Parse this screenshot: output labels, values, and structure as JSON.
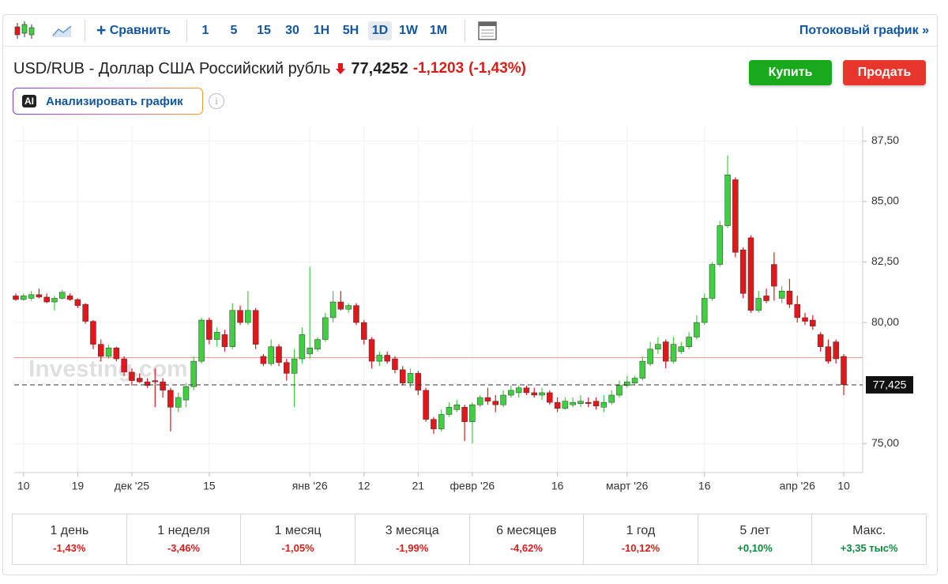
{
  "toolbar": {
    "compare": "Сравнить",
    "timeframes": [
      "1",
      "5",
      "15",
      "30",
      "1H",
      "5H",
      "1D",
      "1W",
      "1M"
    ],
    "selected": "1D",
    "stream_link": "Потоковый график »"
  },
  "header": {
    "title": "USD/RUB - Доллар США Российский рубль",
    "price": "77,4252",
    "change": "-1,1203",
    "change_pct": "(-1,43%)",
    "buy": "Купить",
    "sell": "Продать",
    "ai_badge": "AI",
    "analyze": "Анализировать график"
  },
  "chart_data": {
    "type": "candlestick",
    "watermark": "Investing.com",
    "categories": [
      null,
      "10",
      null,
      null,
      null,
      null,
      null,
      null,
      "19",
      null,
      null,
      null,
      null,
      null,
      null,
      "дек '25",
      null,
      null,
      null,
      null,
      null,
      null,
      null,
      null,
      null,
      "15",
      null,
      null,
      null,
      null,
      null,
      null,
      null,
      null,
      null,
      null,
      null,
      null,
      "янв '26",
      null,
      null,
      null,
      null,
      null,
      null,
      "12",
      null,
      null,
      null,
      null,
      null,
      null,
      "21",
      null,
      null,
      null,
      null,
      null,
      null,
      "февр '26",
      null,
      null,
      null,
      null,
      null,
      null,
      null,
      null,
      null,
      null,
      "16",
      null,
      null,
      null,
      null,
      null,
      null,
      null,
      null,
      "март '26",
      null,
      null,
      null,
      null,
      null,
      null,
      null,
      null,
      null,
      "16",
      null,
      null,
      null,
      null,
      null,
      null,
      null,
      null,
      null,
      null,
      null,
      "апр '26",
      null,
      null,
      null,
      null,
      null,
      "10"
    ],
    "open": [
      81.1,
      80.95,
      81.0,
      81.15,
      81.05,
      80.85,
      81.0,
      81.1,
      80.95,
      80.75,
      80.05,
      79.1,
      78.6,
      78.95,
      78.5,
      77.95,
      77.7,
      77.55,
      77.6,
      77.55,
      77.2,
      76.5,
      76.8,
      77.35,
      78.4,
      80.1,
      79.3,
      79.5,
      79.0,
      80.5,
      80.0,
      80.5,
      78.6,
      78.3,
      79.0,
      78.35,
      77.9,
      78.5,
      78.7,
      78.9,
      79.3,
      80.2,
      80.85,
      80.55,
      80.7,
      80.0,
      79.3,
      78.4,
      78.65,
      78.5,
      78.05,
      77.5,
      77.9,
      77.2,
      76.0,
      75.6,
      76.2,
      76.4,
      76.5,
      75.9,
      76.6,
      76.9,
      76.75,
      76.6,
      77.0,
      77.1,
      77.3,
      77.1,
      77.0,
      77.1,
      76.7,
      76.45,
      76.6,
      76.65,
      76.7,
      76.75,
      76.5,
      76.7,
      77.0,
      77.4,
      77.5,
      77.7,
      78.3,
      78.9,
      79.2,
      78.4,
      78.8,
      79.0,
      79.4,
      80.0,
      81.0,
      82.4,
      84.0,
      85.9,
      83.0,
      83.5,
      80.5,
      81.1,
      82.4,
      81.0,
      81.3,
      80.75,
      80.2,
      80.1,
      79.5,
      79.0,
      79.2,
      78.6
    ],
    "high": [
      81.2,
      81.2,
      81.3,
      81.4,
      81.2,
      81.1,
      81.35,
      81.2,
      81.0,
      80.8,
      80.1,
      79.3,
      79.1,
      79.0,
      78.6,
      78.1,
      77.9,
      77.7,
      78.1,
      77.7,
      77.3,
      77.1,
      77.5,
      78.6,
      80.2,
      80.2,
      79.8,
      79.7,
      80.8,
      80.7,
      81.3,
      80.6,
      78.7,
      79.3,
      79.1,
      78.5,
      78.9,
      79.8,
      82.3,
      79.4,
      80.4,
      81.3,
      81.3,
      80.8,
      80.8,
      80.1,
      79.4,
      78.8,
      78.8,
      78.6,
      78.2,
      78.1,
      78.0,
      77.3,
      76.1,
      76.4,
      76.7,
      76.8,
      76.6,
      76.7,
      77.0,
      77.3,
      77.0,
      77.2,
      77.4,
      77.4,
      77.4,
      77.3,
      77.3,
      77.2,
      76.9,
      76.9,
      76.9,
      77.0,
      76.9,
      76.9,
      77.0,
      77.2,
      77.6,
      77.8,
      77.8,
      78.6,
      79.2,
      79.4,
      79.3,
      79.4,
      79.2,
      79.6,
      80.3,
      81.2,
      82.5,
      84.2,
      86.9,
      86.0,
      83.1,
      83.6,
      81.3,
      81.4,
      82.9,
      81.5,
      81.8,
      81.1,
      80.4,
      80.3,
      79.6,
      79.3,
      79.3,
      78.7
    ],
    "low": [
      80.9,
      80.9,
      80.9,
      81.0,
      80.8,
      80.5,
      80.95,
      80.9,
      80.6,
      79.95,
      78.9,
      78.4,
      78.5,
      78.4,
      77.8,
      77.4,
      77.5,
      77.3,
      76.5,
      76.9,
      75.5,
      76.3,
      76.5,
      77.2,
      78.3,
      79.1,
      79.0,
      78.8,
      78.9,
      79.9,
      79.9,
      78.9,
      78.2,
      78.2,
      78.2,
      77.6,
      76.5,
      78.3,
      78.5,
      78.8,
      79.2,
      80.0,
      80.5,
      80.4,
      79.9,
      79.1,
      78.1,
      78.2,
      78.3,
      77.9,
      77.4,
      77.3,
      77.0,
      75.9,
      75.4,
      75.5,
      76.1,
      76.3,
      75.1,
      75.0,
      76.5,
      76.6,
      76.3,
      76.5,
      76.9,
      76.9,
      77.0,
      76.9,
      76.8,
      76.6,
      76.3,
      76.4,
      76.5,
      76.5,
      76.5,
      76.4,
      76.3,
      76.6,
      76.9,
      77.3,
      77.4,
      77.6,
      78.2,
      78.7,
      78.1,
      78.3,
      78.7,
      78.9,
      79.3,
      79.9,
      80.9,
      82.3,
      83.9,
      82.7,
      81.0,
      80.4,
      80.4,
      80.8,
      80.9,
      80.8,
      80.6,
      80.0,
      79.9,
      79.7,
      78.8,
      78.3,
      78.3,
      77.0
    ],
    "close": [
      80.95,
      81.1,
      81.15,
      81.05,
      80.85,
      81.0,
      81.25,
      80.95,
      80.7,
      80.05,
      79.1,
      78.6,
      78.95,
      78.5,
      77.95,
      77.6,
      77.55,
      77.4,
      77.55,
      77.2,
      76.5,
      76.9,
      77.35,
      78.4,
      80.1,
      79.3,
      79.6,
      79.0,
      80.5,
      80.0,
      80.5,
      79.1,
      78.3,
      79.0,
      78.35,
      77.9,
      78.5,
      79.5,
      78.95,
      79.3,
      80.2,
      80.85,
      80.55,
      80.7,
      80.0,
      79.3,
      78.4,
      78.65,
      78.4,
      78.05,
      77.5,
      77.9,
      77.2,
      76.0,
      75.6,
      76.2,
      76.5,
      76.6,
      75.9,
      76.6,
      76.9,
      76.75,
      76.6,
      77.0,
      77.2,
      77.3,
      77.1,
      77.0,
      77.1,
      76.7,
      76.45,
      76.75,
      76.7,
      76.75,
      76.65,
      76.55,
      76.7,
      77.0,
      77.4,
      77.55,
      77.7,
      78.4,
      78.9,
      79.1,
      78.4,
      79.1,
      79.0,
      79.4,
      80.0,
      81.0,
      82.4,
      84.0,
      86.1,
      82.9,
      81.2,
      80.5,
      81.0,
      80.9,
      81.5,
      81.3,
      80.75,
      80.2,
      80.05,
      79.85,
      79.0,
      78.4,
      78.5,
      77.43
    ],
    "up_color": "#3fcf3f",
    "down_color": "#e3161b",
    "ylim": [
      73.8,
      88.1
    ],
    "yticks": [
      {
        "value": 75,
        "label": "75,00"
      },
      {
        "value": 80,
        "label": "80,00"
      },
      {
        "value": 82.5,
        "label": "82,50"
      },
      {
        "value": 85,
        "label": "85,00"
      },
      {
        "value": 87.5,
        "label": "87,50"
      }
    ],
    "reference_line": 78.55,
    "last_value": 77.425,
    "last_label": "77,425",
    "grid": true
  },
  "performance": [
    {
      "period": "1 день",
      "change": "-1,43%"
    },
    {
      "period": "1 неделя",
      "change": "-3,46%"
    },
    {
      "period": "1 месяц",
      "change": "-1,05%"
    },
    {
      "period": "3 месяца",
      "change": "-1,99%"
    },
    {
      "period": "6 месяцев",
      "change": "-4,62%"
    },
    {
      "period": "1 год",
      "change": "-10,12%"
    },
    {
      "period": "5 лет",
      "change": "+0,10%"
    },
    {
      "period": "Макс.",
      "change": "+3,35 тыс%"
    }
  ]
}
